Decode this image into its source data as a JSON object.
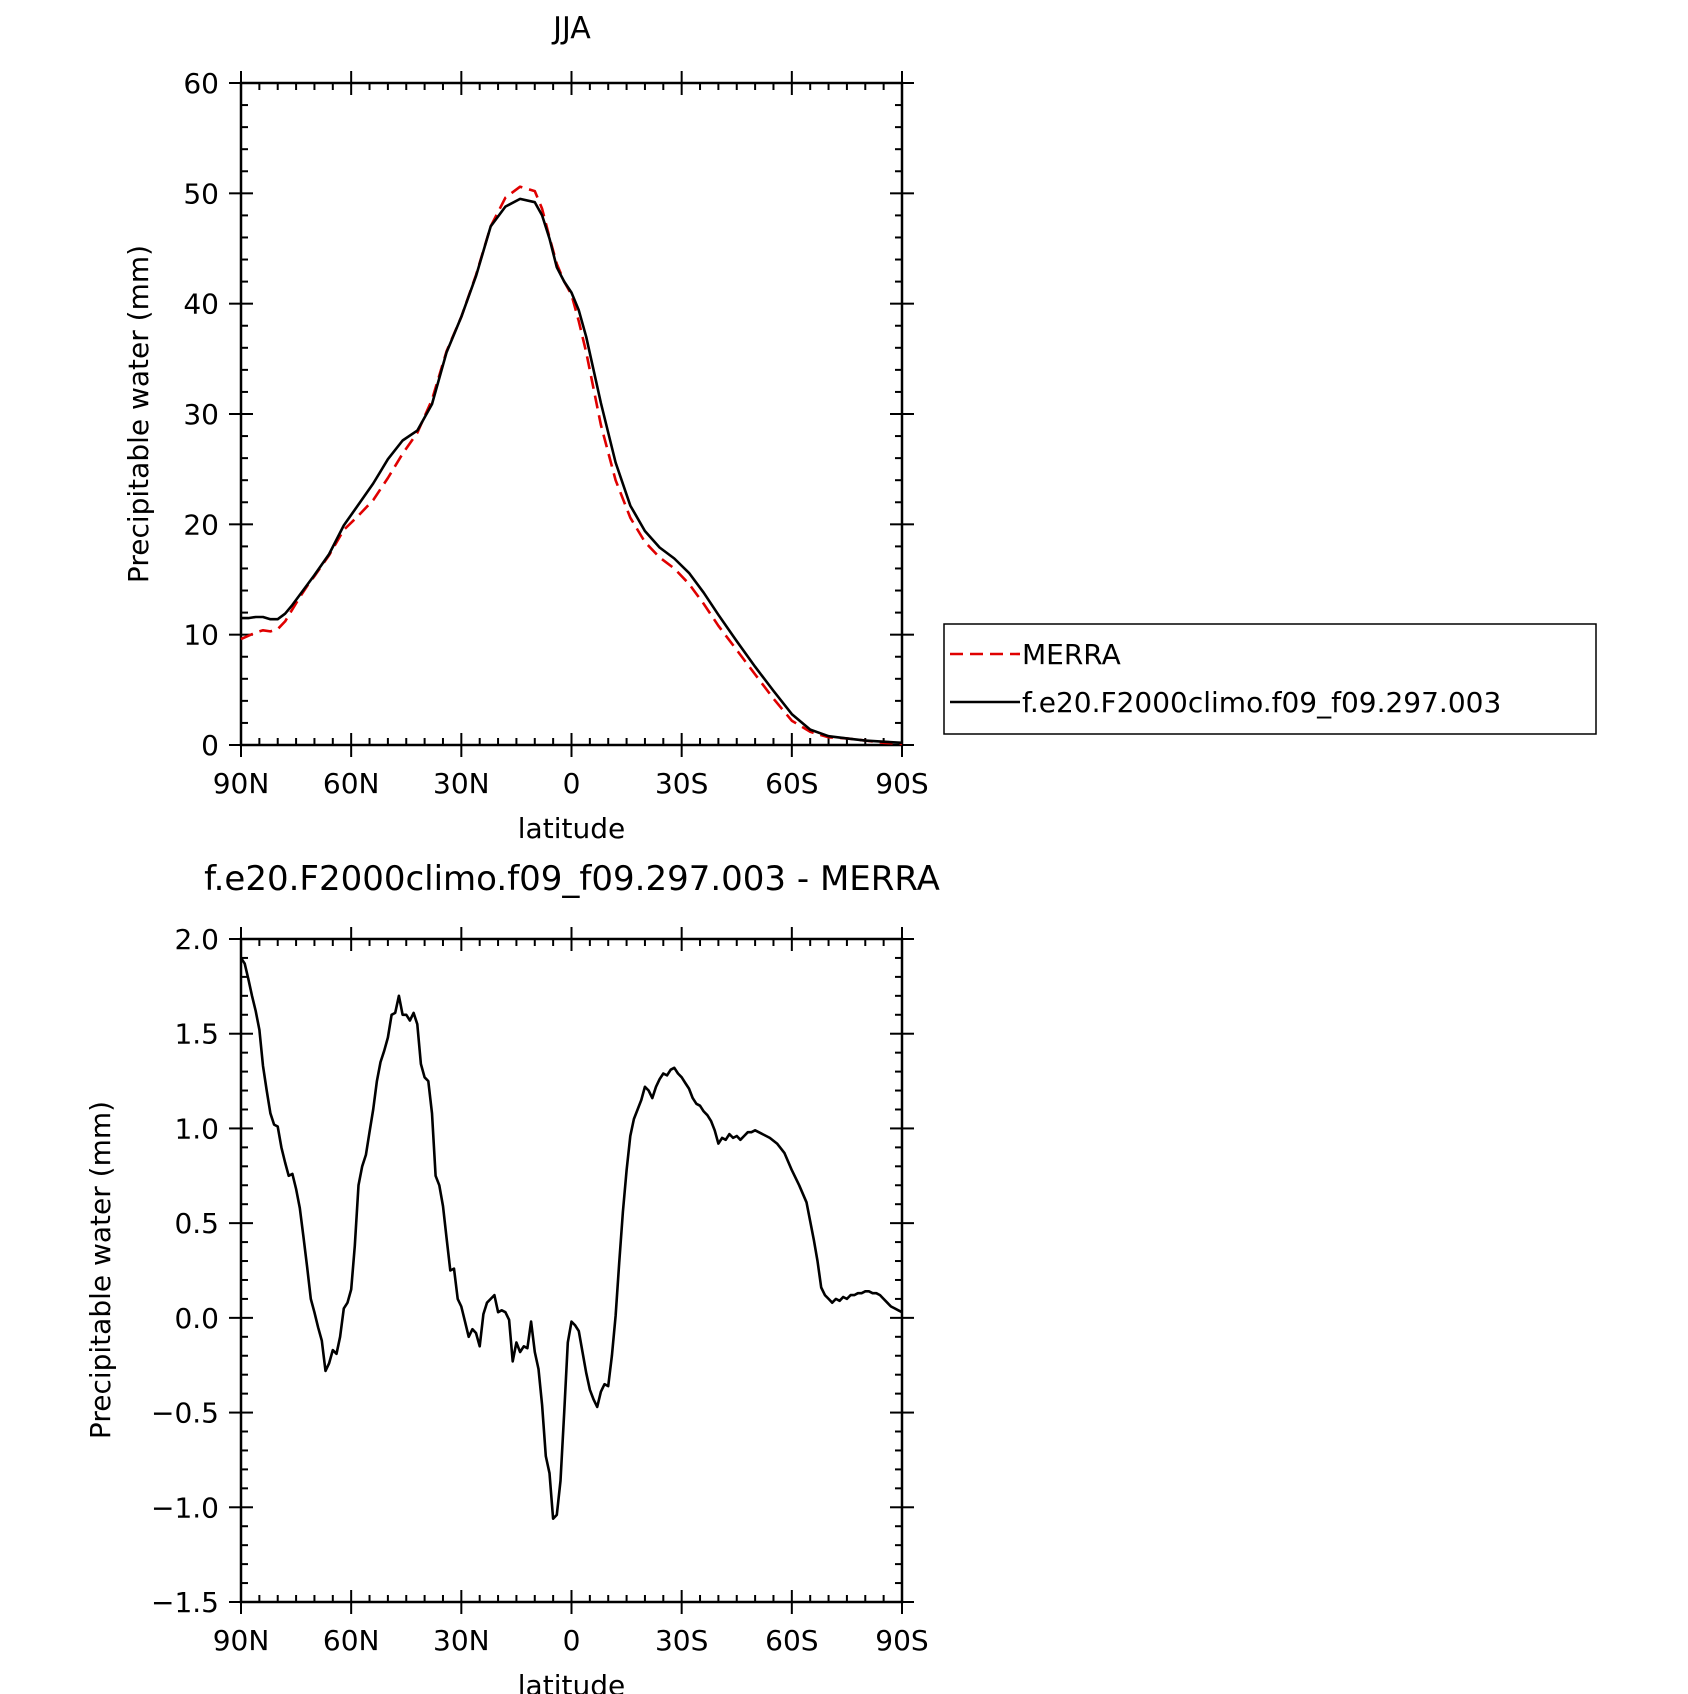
{
  "chart_data": [
    {
      "type": "line",
      "title": "JJA",
      "xlabel": "latitude",
      "ylabel": "Precipitable water (mm)",
      "xlim": [
        90,
        -90
      ],
      "ylim": [
        0,
        60
      ],
      "x_ticks": [
        {
          "value": 90,
          "label": "90N"
        },
        {
          "value": 60,
          "label": "60N"
        },
        {
          "value": 30,
          "label": "30N"
        },
        {
          "value": 0,
          "label": "0"
        },
        {
          "value": -30,
          "label": "30S"
        },
        {
          "value": -60,
          "label": "60S"
        },
        {
          "value": -90,
          "label": "90S"
        }
      ],
      "y_ticks": [
        {
          "value": 0,
          "label": "0"
        },
        {
          "value": 10,
          "label": "10"
        },
        {
          "value": 20,
          "label": "20"
        },
        {
          "value": 30,
          "label": "30"
        },
        {
          "value": 40,
          "label": "40"
        },
        {
          "value": 50,
          "label": "50"
        },
        {
          "value": 60,
          "label": "60"
        }
      ],
      "legend": {
        "position": "right",
        "entries": [
          "MERRA",
          "f.e20.F2000climo.f09_f09.297.003"
        ]
      },
      "series": [
        {
          "name": "MERRA",
          "color": "#e00000",
          "dash": "dashed",
          "x": [
            90,
            88,
            86,
            84,
            82,
            80,
            78,
            76,
            74,
            72,
            70,
            66,
            62,
            58,
            54,
            50,
            46,
            42,
            38,
            34,
            30,
            26,
            22,
            18,
            14,
            10,
            8,
            6,
            4,
            2,
            0,
            -2,
            -4,
            -8,
            -12,
            -16,
            -20,
            -24,
            -28,
            -32,
            -36,
            -40,
            -45,
            -50,
            -55,
            -60,
            -65,
            -70,
            -75,
            -80,
            -85,
            -90
          ],
          "y": [
            9.6,
            9.9,
            10.2,
            10.4,
            10.3,
            10.5,
            11.2,
            12.3,
            13.4,
            14.4,
            15.3,
            17.2,
            19.5,
            20.8,
            22.2,
            24.2,
            26.4,
            28.3,
            31.3,
            35.7,
            38.8,
            42.6,
            47.0,
            49.6,
            50.6,
            50.2,
            48.6,
            46.0,
            43.6,
            42.0,
            40.8,
            38.4,
            35.6,
            29.0,
            24.0,
            20.6,
            18.4,
            17.0,
            16.0,
            14.6,
            12.8,
            10.8,
            8.6,
            6.4,
            4.2,
            2.2,
            1.2,
            0.7,
            0.6,
            0.4,
            0.2,
            0.1
          ]
        },
        {
          "name": "f.e20.F2000climo.f09_f09.297.003",
          "color": "#000000",
          "dash": "solid",
          "x": [
            90,
            88,
            86,
            84,
            82,
            80,
            78,
            76,
            74,
            72,
            70,
            66,
            62,
            58,
            54,
            50,
            46,
            42,
            38,
            34,
            30,
            26,
            22,
            18,
            14,
            10,
            8,
            6,
            4,
            2,
            0,
            -2,
            -4,
            -8,
            -12,
            -16,
            -20,
            -24,
            -28,
            -32,
            -36,
            -40,
            -45,
            -50,
            -55,
            -60,
            -65,
            -70,
            -75,
            -80,
            -85,
            -90
          ],
          "y": [
            11.5,
            11.5,
            11.6,
            11.6,
            11.4,
            11.4,
            11.9,
            12.7,
            13.6,
            14.5,
            15.4,
            17.3,
            19.9,
            21.8,
            23.7,
            25.9,
            27.6,
            28.5,
            30.9,
            35.6,
            38.8,
            42.5,
            47.0,
            48.8,
            49.5,
            49.2,
            48.0,
            45.9,
            43.3,
            42.0,
            41.0,
            39.4,
            37.0,
            31.0,
            25.6,
            21.7,
            19.4,
            17.9,
            16.9,
            15.6,
            13.8,
            11.8,
            9.4,
            7.1,
            4.9,
            2.8,
            1.4,
            0.8,
            0.6,
            0.4,
            0.3,
            0.2
          ]
        }
      ]
    },
    {
      "type": "line",
      "title": "f.e20.F2000climo.f09_f09.297.003 - MERRA",
      "xlabel": "latitude",
      "ylabel": "Precipitable water (mm)",
      "xlim": [
        90,
        -90
      ],
      "ylim": [
        -1.5,
        2.0
      ],
      "x_ticks": [
        {
          "value": 90,
          "label": "90N"
        },
        {
          "value": 60,
          "label": "60N"
        },
        {
          "value": 30,
          "label": "30N"
        },
        {
          "value": 0,
          "label": "0"
        },
        {
          "value": -30,
          "label": "30S"
        },
        {
          "value": -60,
          "label": "60S"
        },
        {
          "value": -90,
          "label": "90S"
        }
      ],
      "y_ticks": [
        {
          "value": -1.5,
          "label": "−1.5"
        },
        {
          "value": -1.0,
          "label": "−1.0"
        },
        {
          "value": -0.5,
          "label": "−0.5"
        },
        {
          "value": 0.0,
          "label": "0.0"
        },
        {
          "value": 0.5,
          "label": "0.5"
        },
        {
          "value": 1.0,
          "label": "1.0"
        },
        {
          "value": 1.5,
          "label": "1.5"
        },
        {
          "value": 2.0,
          "label": "2.0"
        }
      ],
      "series": [
        {
          "color": "#000000",
          "dash": "solid",
          "x": [
            90,
            89,
            88,
            87,
            86,
            85,
            84,
            83,
            82,
            81,
            80,
            79,
            78,
            77,
            76,
            75,
            74,
            73,
            72,
            71,
            70,
            69,
            68,
            67,
            66,
            65,
            64,
            63,
            62,
            61,
            60,
            59,
            58,
            57,
            56,
            55,
            54,
            53,
            52,
            51,
            50,
            49,
            48,
            47,
            46,
            45,
            44,
            43,
            42,
            41,
            40,
            39,
            38,
            37,
            36,
            35,
            34,
            33,
            32,
            31,
            30,
            29,
            28,
            27,
            26,
            25,
            24,
            23,
            22,
            21,
            20,
            19,
            18,
            17,
            16,
            15,
            14,
            13,
            12,
            11,
            10,
            9,
            8,
            7,
            6,
            5,
            4,
            3,
            2,
            1,
            0,
            -1,
            -2,
            -3,
            -4,
            -5,
            -6,
            -7,
            -8,
            -9,
            -10,
            -11,
            -12,
            -13,
            -14,
            -15,
            -16,
            -17,
            -18,
            -19,
            -20,
            -21,
            -22,
            -23,
            -24,
            -25,
            -26,
            -27,
            -28,
            -29,
            -30,
            -31,
            -32,
            -33,
            -34,
            -35,
            -36,
            -37,
            -38,
            -39,
            -40,
            -41,
            -42,
            -43,
            -44,
            -45,
            -46,
            -47,
            -48,
            -49,
            -50,
            -52,
            -54,
            -56,
            -58,
            -60,
            -62,
            -64,
            -65,
            -66,
            -67,
            -68,
            -69,
            -70,
            -71,
            -72,
            -73,
            -74,
            -75,
            -76,
            -77,
            -78,
            -79,
            -80,
            -81,
            -82,
            -83,
            -84,
            -85,
            -86,
            -87,
            -88,
            -89,
            -90
          ],
          "y": [
            1.9,
            1.87,
            1.79,
            1.7,
            1.62,
            1.52,
            1.33,
            1.2,
            1.08,
            1.02,
            1.01,
            0.9,
            0.82,
            0.75,
            0.76,
            0.68,
            0.58,
            0.43,
            0.27,
            0.1,
            0.03,
            -0.05,
            -0.12,
            -0.28,
            -0.24,
            -0.17,
            -0.19,
            -0.1,
            0.05,
            0.08,
            0.15,
            0.38,
            0.7,
            0.8,
            0.86,
            0.98,
            1.1,
            1.25,
            1.35,
            1.41,
            1.48,
            1.6,
            1.61,
            1.7,
            1.6,
            1.6,
            1.57,
            1.61,
            1.55,
            1.34,
            1.27,
            1.25,
            1.08,
            0.75,
            0.7,
            0.59,
            0.42,
            0.25,
            0.26,
            0.1,
            0.06,
            -0.02,
            -0.1,
            -0.06,
            -0.08,
            -0.15,
            0.02,
            0.08,
            0.1,
            0.12,
            0.03,
            0.04,
            0.03,
            -0.01,
            -0.23,
            -0.13,
            -0.18,
            -0.15,
            -0.16,
            -0.02,
            -0.18,
            -0.27,
            -0.46,
            -0.73,
            -0.82,
            -1.06,
            -1.04,
            -0.86,
            -0.5,
            -0.13,
            -0.02,
            -0.04,
            -0.07,
            -0.18,
            -0.29,
            -0.38,
            -0.43,
            -0.47,
            -0.39,
            -0.35,
            -0.36,
            -0.2,
            0.01,
            0.29,
            0.56,
            0.78,
            0.96,
            1.05,
            1.1,
            1.15,
            1.22,
            1.2,
            1.16,
            1.22,
            1.26,
            1.29,
            1.28,
            1.31,
            1.32,
            1.29,
            1.27,
            1.24,
            1.21,
            1.16,
            1.13,
            1.12,
            1.09,
            1.07,
            1.04,
            0.99,
            0.92,
            0.95,
            0.94,
            0.97,
            0.95,
            0.96,
            0.94,
            0.96,
            0.98,
            0.98,
            0.99,
            0.97,
            0.95,
            0.92,
            0.87,
            0.78,
            0.7,
            0.61,
            0.51,
            0.41,
            0.3,
            0.16,
            0.12,
            0.1,
            0.08,
            0.1,
            0.09,
            0.11,
            0.1,
            0.12,
            0.12,
            0.13,
            0.13,
            0.14,
            0.14,
            0.13,
            0.13,
            0.12,
            0.1,
            0.08,
            0.06,
            0.05,
            0.04,
            0.03
          ]
        }
      ]
    }
  ]
}
